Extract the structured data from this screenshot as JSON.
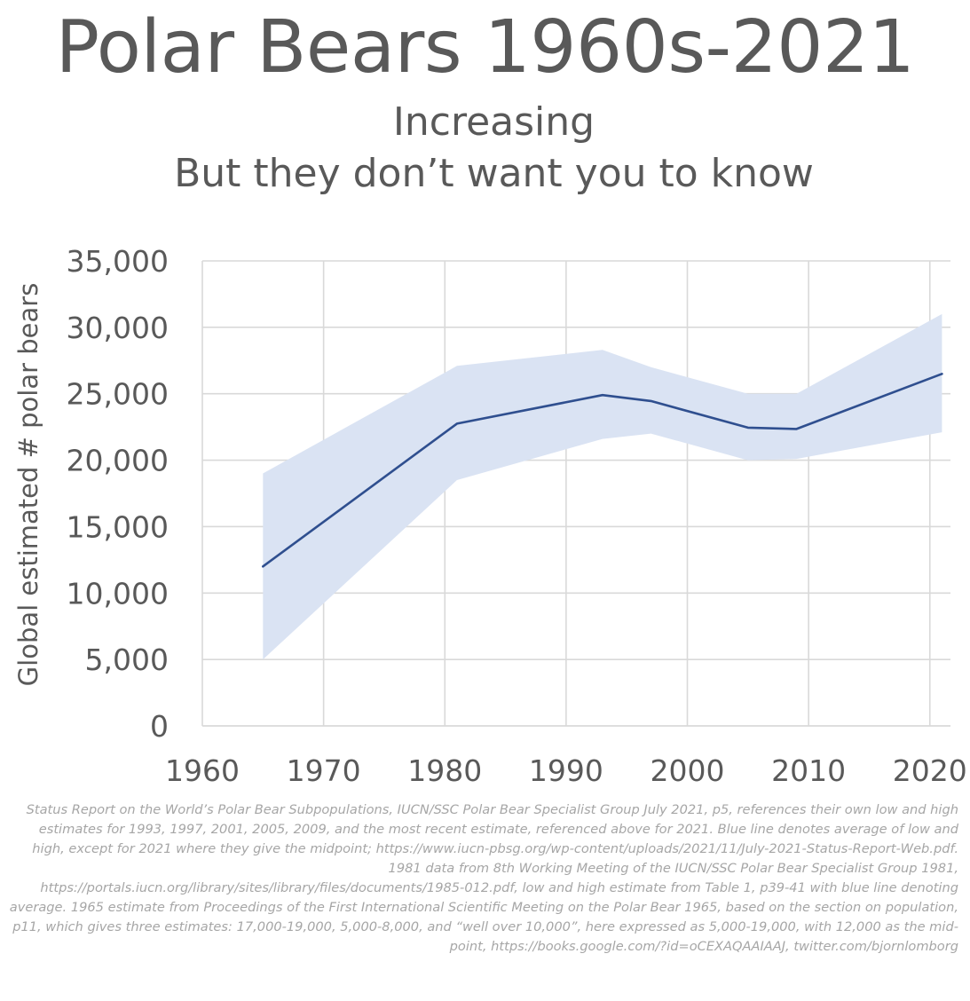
{
  "chart_data": {
    "type": "area",
    "title": "Polar Bears 1960s-2021",
    "subtitle": [
      "Increasing",
      "But they don’t want you to know"
    ],
    "xlabel": "",
    "ylabel": "Global estimated # polar bears",
    "xlim": [
      1960,
      2021
    ],
    "ylim": [
      0,
      35000
    ],
    "x_ticks": [
      1960,
      1970,
      1980,
      1990,
      2000,
      2010,
      2020
    ],
    "x_tick_labels": [
      "1960",
      "1970",
      "1980",
      "1990",
      "2000",
      "2010",
      "2020"
    ],
    "y_ticks": [
      0,
      5000,
      10000,
      15000,
      20000,
      25000,
      30000,
      35000
    ],
    "y_tick_labels": [
      "0",
      "5,000",
      "10,000",
      "15,000",
      "20,000",
      "25,000",
      "30,000",
      "35,000"
    ],
    "grid": true,
    "legend": "none",
    "colors": {
      "line": "#2f4f8f",
      "band": "#dae3f3",
      "grid": "#d9d9d9"
    },
    "x": [
      1965,
      1981,
      1993,
      1997,
      2005,
      2009,
      2021
    ],
    "series": [
      {
        "kind": "line",
        "values": [
          12000,
          22750,
          24900,
          24450,
          22450,
          22350,
          26500
        ]
      },
      {
        "kind": "band-low",
        "values": [
          5000,
          18500,
          21600,
          22000,
          20000,
          20100,
          22100
        ]
      },
      {
        "kind": "band-high",
        "values": [
          19000,
          27100,
          28300,
          27000,
          25000,
          25000,
          31000
        ]
      }
    ]
  },
  "source_note": "Status Report on the World’s Polar Bear Subpopulations, IUCN/SSC Polar Bear Specialist Group July 2021, p5, references their own low and high estimates for 1993, 1997, 2001, 2005, 2009, and the most recent estimate, referenced above for 2021. Blue line denotes average of low and high, except for 2021 where they give the midpoint; https://www.iucn-pbsg.org/wp-content/uploads/2021/11/July-2021-Status-Report-Web.pdf. 1981 data from 8th Working Meeting of the IUCN/SSC Polar Bear Specialist Group 1981, https://portals.iucn.org/library/sites/library/files/documents/1985-012.pdf, low and high estimate from Table 1, p39-41 with blue line denoting average. 1965 estimate from Proceedings of the First International Scientific Meeting on the Polar Bear 1965, based on the section on population, p11, which gives three estimates: 17,000-19,000, 5,000-8,000, and “well over 10,000”, here expressed as 5,000-19,000, with 12,000 as the mid-point, https://books.google.com/?id=oCEXAQAAIAAJ, twitter.com/bjornlomborg"
}
